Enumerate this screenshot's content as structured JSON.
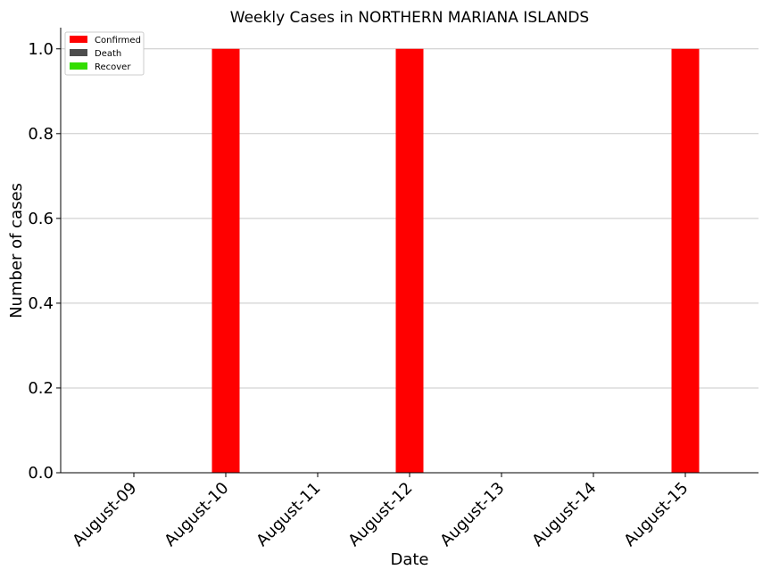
{
  "chart_data": {
    "type": "bar",
    "title": "Weekly Cases in NORTHERN MARIANA ISLANDS",
    "xlabel": "Date",
    "ylabel": "Number of cases",
    "categories": [
      "August-09",
      "August-10",
      "August-11",
      "August-12",
      "August-13",
      "August-14",
      "August-15"
    ],
    "series": [
      {
        "name": "Confirmed",
        "color": "#ff0000",
        "values": [
          0,
          1,
          0,
          1,
          0,
          0,
          1
        ]
      },
      {
        "name": "Death",
        "color": "#4d4d4d",
        "values": [
          0,
          0,
          0,
          0,
          0,
          0,
          0
        ]
      },
      {
        "name": "Recover",
        "color": "#33dd00",
        "values": [
          0,
          0,
          0,
          0,
          0,
          0,
          0
        ]
      }
    ],
    "ylim": [
      0,
      1.05
    ],
    "yticks": [
      "0.0",
      "0.2",
      "0.4",
      "0.6",
      "0.8",
      "1.0"
    ],
    "grid": "horizontal",
    "legend_position": "top-left"
  }
}
